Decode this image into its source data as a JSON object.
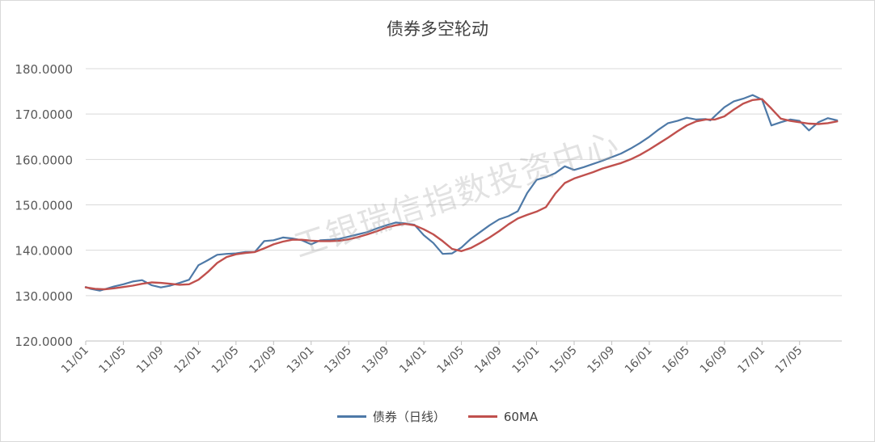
{
  "chart_data": {
    "type": "line",
    "title": "债券多空轮动",
    "ylim": [
      120,
      180
    ],
    "y_ticks": [
      "120.0000",
      "130.0000",
      "140.0000",
      "150.0000",
      "160.0000",
      "170.0000",
      "180.0000"
    ],
    "x_ticks": [
      "11/01",
      "11/05",
      "11/09",
      "12/01",
      "12/05",
      "12/09",
      "13/01",
      "13/05",
      "13/09",
      "14/01",
      "14/05",
      "14/09",
      "15/01",
      "15/05",
      "15/09",
      "16/01",
      "16/05",
      "16/09",
      "17/01",
      "17/05"
    ],
    "x_range": [
      0,
      80.5
    ],
    "grid": "horizontal",
    "legend_position": "bottom",
    "series": [
      {
        "name": "债券（日线）",
        "color": "#4e79a7",
        "x": [
          0,
          0.5,
          1,
          1.5,
          2,
          3,
          4,
          5,
          6,
          7,
          8,
          9,
          10,
          11,
          12,
          13,
          14,
          15,
          16,
          17,
          18,
          19,
          20,
          21,
          22,
          23,
          24,
          25,
          26,
          27,
          28,
          29,
          30,
          31,
          32,
          33,
          34,
          35,
          36,
          37,
          38,
          39,
          40,
          41,
          42,
          43,
          44,
          45,
          46,
          47,
          48,
          49,
          50,
          51,
          52,
          53,
          54,
          55,
          56,
          57,
          58,
          59,
          60,
          61,
          62,
          63,
          64,
          65,
          66,
          66.5,
          67,
          68,
          69,
          70,
          71,
          72,
          73,
          74,
          75,
          76,
          77,
          78,
          79,
          80
        ],
        "values": [
          131.9,
          131.5,
          131.3,
          131.1,
          131.4,
          132.0,
          132.5,
          133.1,
          133.4,
          132.3,
          131.8,
          132.2,
          132.8,
          133.5,
          136.7,
          137.8,
          139.0,
          139.2,
          139.3,
          139.6,
          139.6,
          142.0,
          142.2,
          142.8,
          142.6,
          142.2,
          141.3,
          142.2,
          142.3,
          142.5,
          143.0,
          143.5,
          144.0,
          144.8,
          145.5,
          146.1,
          145.9,
          145.6,
          143.3,
          141.6,
          139.2,
          139.3,
          140.6,
          142.5,
          144.0,
          145.5,
          146.8,
          147.5,
          148.6,
          152.6,
          155.5,
          156.1,
          157.0,
          158.5,
          157.7,
          158.3,
          159.0,
          159.7,
          160.5,
          161.3,
          162.4,
          163.6,
          165.0,
          166.6,
          168.0,
          168.5,
          169.2,
          168.8,
          168.9,
          168.6,
          169.6,
          171.5,
          172.8,
          173.4,
          174.2,
          173.2,
          167.5,
          168.2,
          168.8,
          168.5,
          166.4,
          168.2,
          169.1,
          168.6
        ]
      },
      {
        "name": "60MA",
        "color": "#c0504d",
        "x": [
          0,
          1,
          2,
          3,
          4,
          5,
          6,
          7,
          8,
          9,
          10,
          11,
          12,
          13,
          14,
          15,
          16,
          17,
          18,
          19,
          20,
          21,
          22,
          23,
          24,
          25,
          26,
          27,
          28,
          29,
          30,
          31,
          32,
          33,
          34,
          35,
          36,
          37,
          38,
          39,
          40,
          41,
          42,
          43,
          44,
          45,
          46,
          47,
          48,
          49,
          50,
          51,
          52,
          53,
          54,
          55,
          56,
          57,
          58,
          59,
          60,
          61,
          62,
          63,
          64,
          65,
          66,
          67,
          68,
          69,
          70,
          71,
          72,
          73,
          74,
          75,
          76,
          77,
          78,
          79,
          80
        ],
        "values": [
          131.8,
          131.5,
          131.4,
          131.6,
          131.9,
          132.2,
          132.6,
          132.9,
          132.8,
          132.6,
          132.4,
          132.5,
          133.5,
          135.2,
          137.2,
          138.5,
          139.1,
          139.4,
          139.6,
          140.4,
          141.3,
          141.9,
          142.3,
          142.3,
          142.1,
          142.0,
          142.0,
          142.1,
          142.4,
          142.9,
          143.5,
          144.2,
          145.0,
          145.5,
          145.8,
          145.5,
          144.6,
          143.5,
          142.0,
          140.3,
          139.8,
          140.5,
          141.6,
          142.8,
          144.2,
          145.7,
          147.0,
          147.8,
          148.5,
          149.5,
          152.5,
          154.8,
          155.8,
          156.5,
          157.2,
          158.0,
          158.6,
          159.2,
          160.0,
          161.0,
          162.2,
          163.5,
          164.8,
          166.2,
          167.5,
          168.4,
          168.8,
          168.8,
          169.5,
          171.0,
          172.3,
          173.1,
          173.3,
          171.2,
          169.0,
          168.5,
          168.2,
          167.9,
          167.8,
          168.0,
          168.4
        ]
      }
    ]
  },
  "watermark": "工银瑞信指数投资中心"
}
